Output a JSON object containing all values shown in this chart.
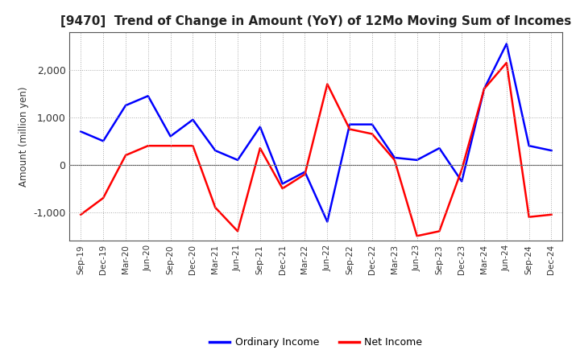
{
  "title": "[9470]  Trend of Change in Amount (YoY) of 12Mo Moving Sum of Incomes",
  "ylabel": "Amount (million yen)",
  "x_labels": [
    "Sep-19",
    "Dec-19",
    "Mar-20",
    "Jun-20",
    "Sep-20",
    "Dec-20",
    "Mar-21",
    "Jun-21",
    "Sep-21",
    "Dec-21",
    "Mar-22",
    "Jun-22",
    "Sep-22",
    "Dec-22",
    "Mar-23",
    "Jun-23",
    "Sep-23",
    "Dec-23",
    "Mar-24",
    "Jun-24",
    "Sep-24",
    "Dec-24"
  ],
  "ordinary_income": [
    700,
    500,
    1250,
    1450,
    600,
    950,
    300,
    100,
    800,
    -400,
    -150,
    -1200,
    850,
    850,
    150,
    100,
    350,
    -350,
    1600,
    2550,
    400,
    300
  ],
  "net_income": [
    -1050,
    -700,
    200,
    400,
    400,
    400,
    -900,
    -1400,
    350,
    -500,
    -200,
    1700,
    750,
    650,
    100,
    -1500,
    -1400,
    -100,
    1600,
    2150,
    -1100,
    -1050
  ],
  "ordinary_color": "#0000ff",
  "net_color": "#ff0000",
  "background_color": "#ffffff",
  "grid_color": "#aaaaaa",
  "ylim": [
    -1600,
    2800
  ],
  "yticks": [
    -1000,
    0,
    1000,
    2000
  ],
  "legend_labels": [
    "Ordinary Income",
    "Net Income"
  ]
}
